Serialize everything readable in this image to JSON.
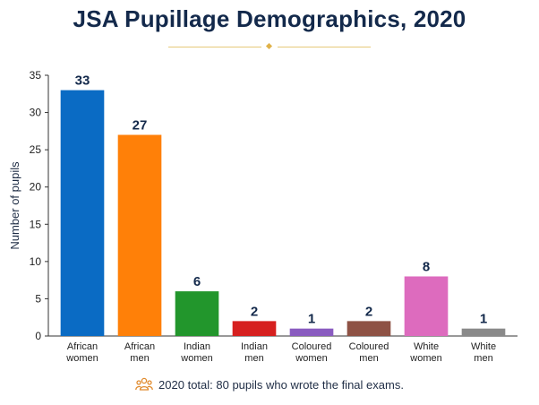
{
  "title": "JSA Pupillage Demographics, 2020",
  "footer": {
    "text": "2020 total: 80 pupils who wrote the final exams.",
    "icon": "people-group-icon",
    "icon_color": "#e08a2c"
  },
  "chart_data": {
    "type": "bar",
    "title": "JSA Pupillage Demographics, 2020",
    "ylabel": "Number of pupils",
    "xlabel": "",
    "ylim": [
      0,
      35
    ],
    "yticks": [
      0,
      5,
      10,
      15,
      20,
      25,
      30,
      35
    ],
    "grid": false,
    "categories": [
      [
        "African",
        "women"
      ],
      [
        "African",
        "men"
      ],
      [
        "Indian",
        "women"
      ],
      [
        "Indian",
        "men"
      ],
      [
        "Coloured",
        "women"
      ],
      [
        "Coloured",
        "men"
      ],
      [
        "White",
        "women"
      ],
      [
        "White",
        "men"
      ]
    ],
    "values": [
      33,
      27,
      6,
      2,
      1,
      2,
      8,
      1
    ],
    "colors": [
      "#0a6bc4",
      "#ff8008",
      "#22962c",
      "#d6201f",
      "#8a5cc0",
      "#8e5245",
      "#dd6bbe",
      "#8a8a8a"
    ]
  }
}
